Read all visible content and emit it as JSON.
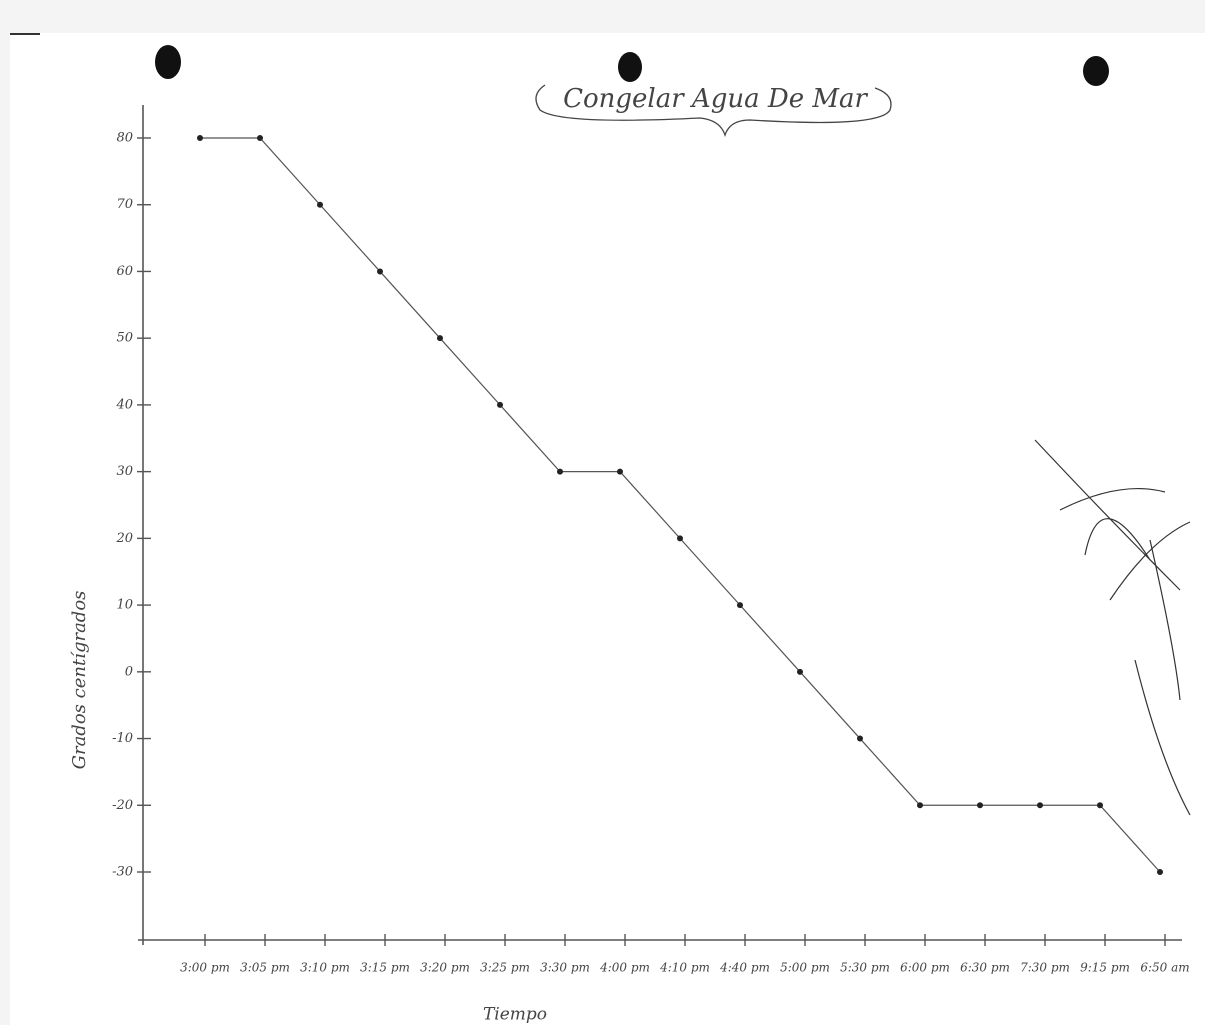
{
  "chart_data": {
    "type": "line",
    "title": "Congelar Agua De Mar",
    "y_label": "Grados centígrados",
    "x_label": "Tiempo",
    "categories": [
      "3:00 pm",
      "3:05 pm",
      "3:10 pm",
      "3:15 pm",
      "3:20 pm",
      "3:25 pm",
      "3:30 pm",
      "4:00 pm",
      "4:10 pm",
      "4:40 pm",
      "5:00 pm",
      "5:30 pm",
      "6:00 pm",
      "6:30 pm",
      "7:30 pm",
      "9:15 pm",
      "6:50 am"
    ],
    "values": [
      80,
      80,
      70,
      60,
      50,
      40,
      30,
      30,
      20,
      10,
      0,
      -10,
      -20,
      -20,
      -20,
      -20,
      -30
    ],
    "color": "#555555",
    "ylim": [
      -40,
      80
    ],
    "yticks": [
      -30,
      -20,
      -10,
      0,
      10,
      20,
      30,
      40,
      50,
      60,
      70,
      80
    ],
    "grid": false
  }
}
